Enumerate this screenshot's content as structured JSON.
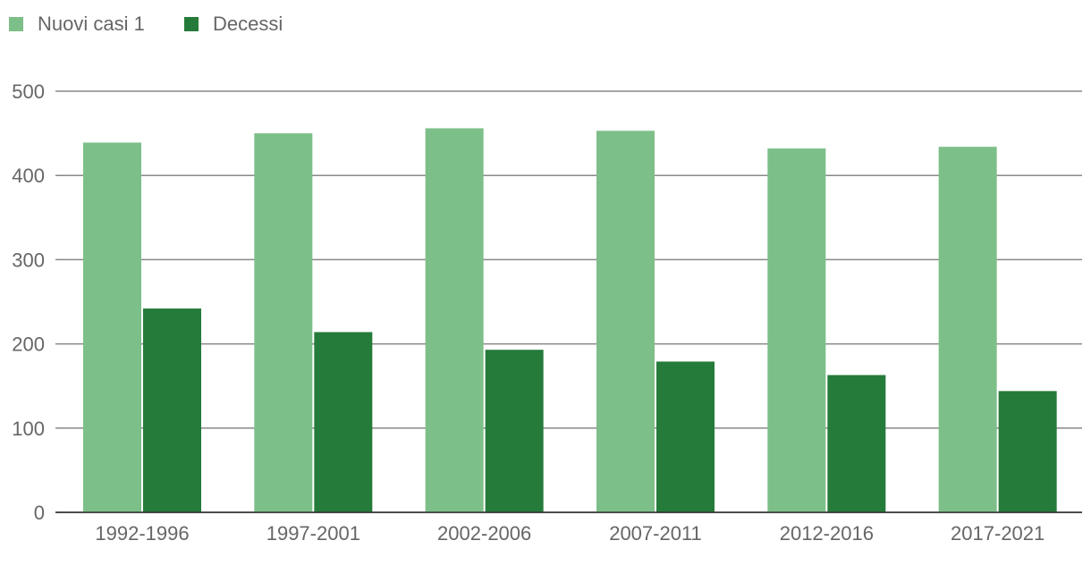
{
  "chart_data": {
    "type": "bar",
    "title": "",
    "xlabel": "",
    "ylabel": "",
    "categories": [
      "1992-1996",
      "1997-2001",
      "2002-2006",
      "2007-2011",
      "2012-2016",
      "2017-2021"
    ],
    "series": [
      {
        "name": "Nuovi casi 1",
        "color": "#7dbf88",
        "values": [
          439,
          450,
          456,
          453,
          432,
          434
        ]
      },
      {
        "name": "Decessi",
        "color": "#257b3a",
        "values": [
          242,
          214,
          193,
          179,
          163,
          144
        ]
      }
    ],
    "ylim": [
      0,
      500
    ],
    "yticks": [
      0,
      100,
      200,
      300,
      400,
      500
    ],
    "grid": true,
    "legend": "top-left"
  }
}
